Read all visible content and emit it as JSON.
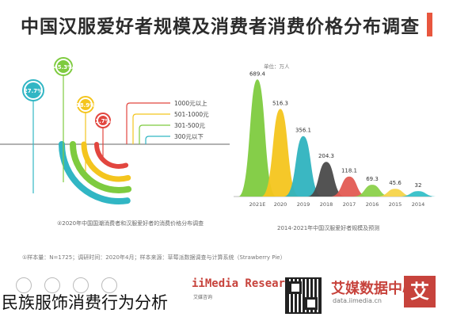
{
  "title": "中国汉服爱好者规模及消费者消费价格分布调查",
  "overlay_caption": "民族服饰消费行为分析",
  "colors": {
    "accent": "#e8563e",
    "rings": [
      "#31b6c4",
      "#7ecb3f",
      "#f4c51e",
      "#e2463f"
    ],
    "bars": [
      "#7ecb3f",
      "#f4c51e",
      "#2fb3bf",
      "#4a4a4a",
      "#e35b53",
      "#8bd14b",
      "#f6d44a",
      "#35c0c8"
    ]
  },
  "chart_data": [
    {
      "type": "radial_bar",
      "series": [
        {
          "name": "1000元以上",
          "value": 18.9,
          "label": "18.9%"
        },
        {
          "name": "501-1000元",
          "value": 45.3,
          "label": "45.3%"
        },
        {
          "name": "301-500元",
          "value": 27.7,
          "label": "27.7%"
        },
        {
          "name": "300元以下",
          "value": 1.7,
          "label": "1.7%"
        }
      ],
      "legend": [
        "1000元以上",
        "501-1000元",
        "301-500元",
        "300元以下"
      ],
      "caption": "②2020年中国国潮消费者和汉服爱好者的消费价格分布调查"
    },
    {
      "type": "area",
      "unit": "单位：万人",
      "categories": [
        "2021E",
        "2020",
        "2019",
        "2018",
        "2017",
        "2016",
        "2015",
        "2014"
      ],
      "values": [
        689.4,
        516.3,
        356.1,
        204.3,
        118.1,
        69.3,
        45.6,
        32
      ],
      "labels": [
        "689.4",
        "516.3",
        "356.1",
        "204.3",
        "118.1",
        "69.3",
        "45.6",
        "32"
      ],
      "caption": "2014-2021年中国汉服爱好者规模及预测"
    }
  ],
  "footer_note": "①样本量：N=1725；调研时间：2020年4月；样本来源：草莓派数据调查与计算系统（Strawberry Pie）",
  "logo": {
    "main": "iiMedia Research",
    "sub": "艾媒咨询"
  },
  "brand": {
    "main": "艾媒数据中心",
    "sub": "data.iimedia.cn",
    "box": "艾"
  }
}
